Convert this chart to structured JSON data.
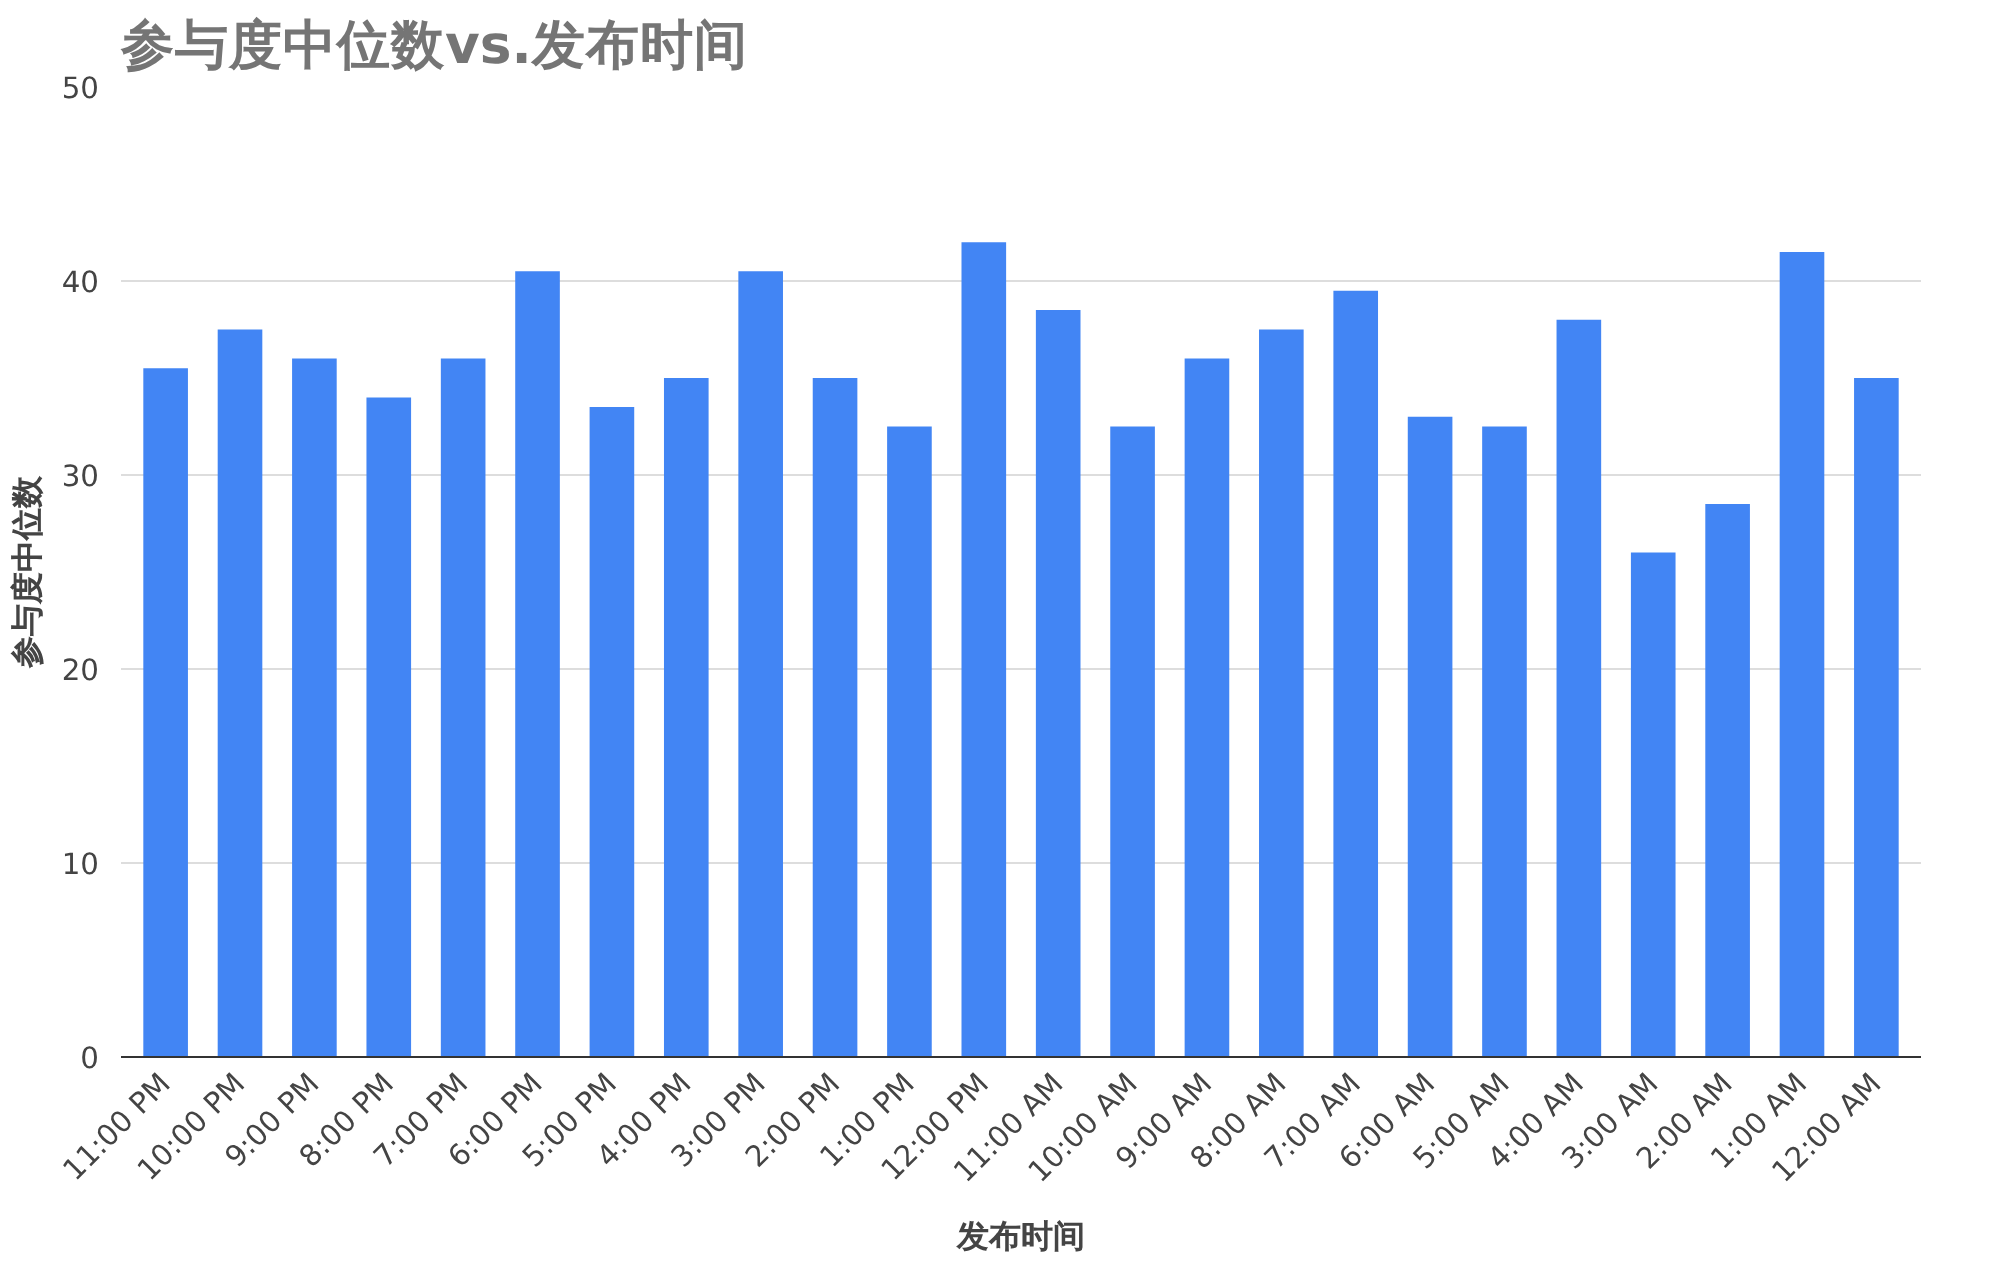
{
  "chart_data": {
    "type": "bar",
    "title": "参与度中位数vs.发布时间",
    "xlabel": "发布时间",
    "ylabel": "参与度中位数",
    "categories": [
      "11:00 PM",
      "10:00 PM",
      "9:00 PM",
      "8:00 PM",
      "7:00 PM",
      "6:00 PM",
      "5:00 PM",
      "4:00 PM",
      "3:00 PM",
      "2:00 PM",
      "1:00 PM",
      "12:00 PM",
      "11:00 AM",
      "10:00 AM",
      "9:00 AM",
      "8:00 AM",
      "7:00 AM",
      "6:00 AM",
      "5:00 AM",
      "4:00 AM",
      "3:00 AM",
      "2:00 AM",
      "1:00 AM",
      "12:00 AM"
    ],
    "values": [
      35.5,
      37.5,
      36,
      34,
      36,
      40.5,
      33.5,
      35,
      40.5,
      35,
      32.5,
      42,
      38.5,
      32.5,
      36,
      37.5,
      39.5,
      33,
      32.5,
      38,
      26,
      28.5,
      41.5,
      35
    ],
    "color": "#4285f4",
    "ylim": [
      0,
      50
    ],
    "yticks": [
      0,
      10,
      20,
      30,
      40,
      50
    ],
    "grid": "y"
  }
}
